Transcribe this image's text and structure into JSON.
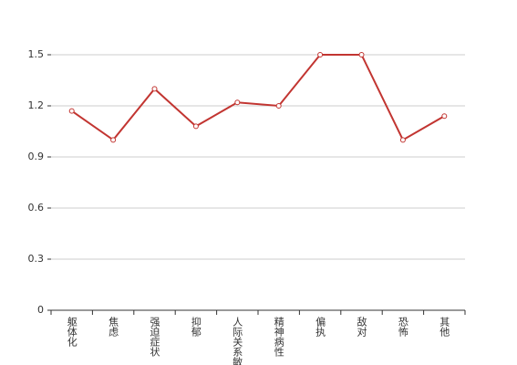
{
  "chart_data": {
    "type": "line",
    "categories": [
      "躯体化",
      "焦虑",
      "强迫症状",
      "抑郁",
      "人际关系敏感",
      "精神病性",
      "偏执",
      "敌对",
      "恐怖",
      "其他"
    ],
    "series": [
      {
        "color": "#c23531",
        "values": [
          1.17,
          1.0,
          1.3,
          1.08,
          1.22,
          1.2,
          1.5,
          1.5,
          1.0,
          1.14
        ]
      }
    ],
    "ylim": [
      0,
      1.5
    ],
    "yticks": [
      0,
      0.3,
      0.6,
      0.9,
      1.2,
      1.5
    ],
    "grid": true
  }
}
